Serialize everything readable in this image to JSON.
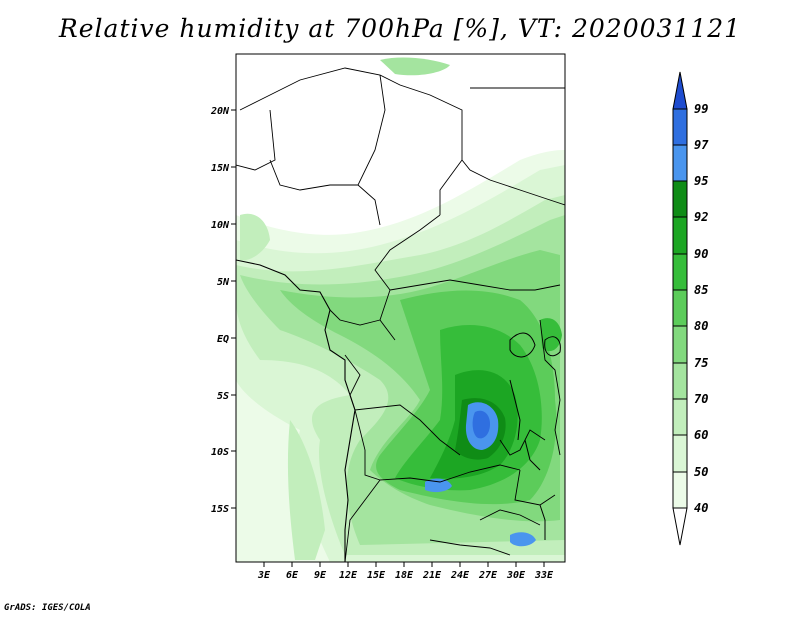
{
  "title": "Relative humidity at 700hPa [%], VT: 2020031121",
  "credit": "GrADS: IGES/COLA",
  "lat_labels": [
    "20N",
    "15N",
    "10N",
    "5N",
    "EQ",
    "5S",
    "10S",
    "15S"
  ],
  "lon_labels": [
    "3E",
    "6E",
    "9E",
    "12E",
    "15E",
    "18E",
    "21E",
    "24E",
    "27E",
    "30E",
    "33E"
  ],
  "colorbar": {
    "levels": [
      "99",
      "97",
      "95",
      "92",
      "90",
      "85",
      "80",
      "75",
      "70",
      "60",
      "50",
      "40"
    ],
    "colors": {
      "above_99": "#1e4ccf",
      "97_99": "#2f6fe0",
      "95_97": "#4a95ee",
      "92_95": "#0f8c16",
      "90_92": "#1ca623",
      "85_90": "#36bd3a",
      "80_85": "#5ccc5a",
      "75_80": "#82d97e",
      "70_75": "#a4e49f",
      "60_70": "#c2eebc",
      "50_60": "#daf6d5",
      "40_50": "#ecfbe8",
      "below_40": "#ffffff"
    }
  }
}
